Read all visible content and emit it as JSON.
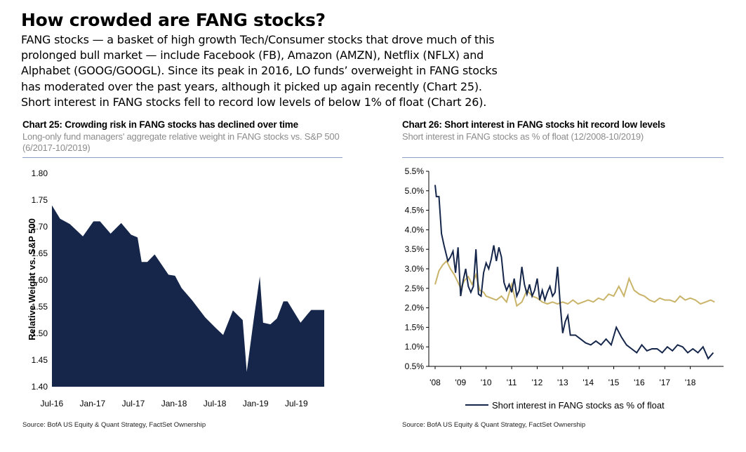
{
  "header": {
    "title": "How crowded are FANG stocks?",
    "intro": "FANG stocks — a basket of high growth Tech/Consumer stocks that drove much of this prolonged bull market — include Facebook (FB), Amazon (AMZN), Netflix (NFLX) and Alphabet (GOOG/GOOGL). Since its peak in 2016, LO funds’ overweight in FANG stocks has moderated over the past years, although it picked up again recently (Chart 25). Short interest in FANG stocks fell to record low levels of below 1% of float (Chart 26)."
  },
  "chart25": {
    "title": "Chart 25: Crowding risk in FANG stocks has declined over time",
    "subtitle": "Long-only fund managers' aggregate relative weight in FANG stocks vs. S&P 500 (6/2017-10/2019)",
    "source": "Source:  BofA US Equity & Quant Strategy, FactSet Ownership",
    "fill_color": "#15264a"
  },
  "chart26": {
    "title": "Chart 26: Short interest in FANG stocks hit record low levels",
    "subtitle": "Short interest in FANG stocks as % of float (12/2008-10/2019)",
    "source": "Source:  BofA US Equity & Quant Strategy, FactSet Ownership",
    "legend_label": "Short interest in FANG stocks as % of float",
    "series_color": "#15264a",
    "second_color": "#c9b46a"
  },
  "chart_data": [
    {
      "type": "area",
      "title": "Chart 25: Crowding risk in FANG stocks has declined over time",
      "ylabel": "Relative Weight vs. S&P 500",
      "ylim": [
        1.4,
        1.8
      ],
      "yticks": [
        "1.80",
        "1.75",
        "1.70",
        "1.65",
        "1.60",
        "1.55",
        "1.50",
        "1.45",
        "1.40"
      ],
      "xticks": [
        "Jul-16",
        "Jan-17",
        "Jul-17",
        "Jan-18",
        "Jul-18",
        "Jan-19",
        "Jul-19"
      ],
      "x": [
        2016.45,
        2016.55,
        2016.67,
        2016.83,
        2016.96,
        2017.04,
        2017.17,
        2017.3,
        2017.42,
        2017.5,
        2017.55,
        2017.62,
        2017.71,
        2017.88,
        2017.96,
        2018.04,
        2018.17,
        2018.33,
        2018.46,
        2018.55,
        2018.67,
        2018.79,
        2018.84,
        2018.92,
        2019.0,
        2019.04,
        2019.13,
        2019.21,
        2019.29,
        2019.34,
        2019.5,
        2019.58,
        2019.63,
        2019.71,
        2019.79
      ],
      "values": [
        1.74,
        1.715,
        1.705,
        1.682,
        1.71,
        1.71,
        1.687,
        1.707,
        1.685,
        1.68,
        1.634,
        1.634,
        1.648,
        1.61,
        1.608,
        1.585,
        1.562,
        1.53,
        1.51,
        1.497,
        1.543,
        1.525,
        1.428,
        1.52,
        1.607,
        1.52,
        1.517,
        1.528,
        1.56,
        1.56,
        1.52,
        1.535,
        1.544,
        1.544,
        1.544
      ],
      "grid": false
    },
    {
      "type": "line",
      "title": "Chart 26: Short interest in FANG stocks hit record low levels",
      "ylim": [
        0.5,
        5.5
      ],
      "yticks": [
        "5.5%",
        "5.0%",
        "4.5%",
        "4.0%",
        "3.5%",
        "3.0%",
        "2.5%",
        "2.0%",
        "1.5%",
        "1.0%",
        "0.5%"
      ],
      "xticks": [
        "'08",
        "'09",
        "'10",
        "'11",
        "'12",
        "'13",
        "'14",
        "'15",
        "'16",
        "'17",
        "'18"
      ],
      "legend": "bottom",
      "grid": false,
      "series": [
        {
          "name": "Short interest in FANG stocks as % of float",
          "x": [
            2008.0,
            2008.05,
            2008.15,
            2008.25,
            2008.35,
            2008.5,
            2008.6,
            2008.7,
            2008.8,
            2008.9,
            2009.0,
            2009.1,
            2009.2,
            2009.3,
            2009.4,
            2009.5,
            2009.6,
            2009.7,
            2009.8,
            2009.9,
            2010.0,
            2010.1,
            2010.2,
            2010.3,
            2010.4,
            2010.5,
            2010.6,
            2010.7,
            2010.8,
            2010.9,
            2011.0,
            2011.1,
            2011.2,
            2011.3,
            2011.4,
            2011.5,
            2011.6,
            2011.7,
            2011.8,
            2011.9,
            2012.0,
            2012.1,
            2012.2,
            2012.3,
            2012.4,
            2012.5,
            2012.6,
            2012.7,
            2012.8,
            2012.9,
            2013.0,
            2013.1,
            2013.2,
            2013.3,
            2013.5,
            2013.7,
            2013.9,
            2014.1,
            2014.3,
            2014.5,
            2014.7,
            2014.9,
            2015.1,
            2015.3,
            2015.5,
            2015.7,
            2015.9,
            2016.1,
            2016.3,
            2016.5,
            2016.7,
            2016.9,
            2017.1,
            2017.3,
            2017.5,
            2017.7,
            2017.9,
            2018.1,
            2018.3,
            2018.5,
            2018.7,
            2018.9
          ],
          "values": [
            5.15,
            4.85,
            4.85,
            3.9,
            3.6,
            3.2,
            3.3,
            3.45,
            2.9,
            3.55,
            2.3,
            2.7,
            3.0,
            2.55,
            2.4,
            2.55,
            3.5,
            2.35,
            2.3,
            2.9,
            3.15,
            3.0,
            3.25,
            3.6,
            3.2,
            3.55,
            3.3,
            2.65,
            2.45,
            2.6,
            2.4,
            2.75,
            2.3,
            2.45,
            3.05,
            2.6,
            2.35,
            2.6,
            2.3,
            2.45,
            2.75,
            2.2,
            2.45,
            2.2,
            2.4,
            2.55,
            2.3,
            2.4,
            3.05,
            2.1,
            1.35,
            1.65,
            1.8,
            1.3,
            1.3,
            1.2,
            1.1,
            1.05,
            1.15,
            1.05,
            1.2,
            1.05,
            1.5,
            1.25,
            1.05,
            0.95,
            0.85,
            1.05,
            0.9,
            0.95,
            0.95,
            0.85,
            1.0,
            0.9,
            1.05,
            1.0,
            0.85,
            0.95,
            0.85,
            1.0,
            0.7,
            0.85
          ]
        },
        {
          "name": "",
          "x": [
            2008.0,
            2008.15,
            2008.3,
            2008.45,
            2008.6,
            2008.75,
            2008.9,
            2009.0,
            2009.15,
            2009.3,
            2009.45,
            2009.6,
            2009.75,
            2009.9,
            2010.0,
            2010.2,
            2010.4,
            2010.6,
            2010.8,
            2011.0,
            2011.2,
            2011.4,
            2011.6,
            2011.8,
            2012.0,
            2012.2,
            2012.4,
            2012.6,
            2012.8,
            2013.0,
            2013.2,
            2013.4,
            2013.6,
            2013.8,
            2014.0,
            2014.2,
            2014.4,
            2014.6,
            2014.8,
            2015.0,
            2015.2,
            2015.4,
            2015.6,
            2015.8,
            2016.0,
            2016.2,
            2016.4,
            2016.6,
            2016.8,
            2017.0,
            2017.2,
            2017.4,
            2017.6,
            2017.8,
            2018.0,
            2018.2,
            2018.4,
            2018.6,
            2018.8,
            2018.95
          ],
          "values": [
            2.6,
            2.95,
            3.1,
            3.2,
            3.0,
            2.85,
            2.65,
            2.5,
            2.7,
            2.8,
            2.6,
            2.85,
            2.45,
            2.4,
            2.3,
            2.25,
            2.2,
            2.3,
            2.15,
            2.6,
            2.05,
            2.15,
            2.45,
            2.3,
            2.25,
            2.15,
            2.1,
            2.15,
            2.1,
            2.15,
            2.1,
            2.2,
            2.1,
            2.15,
            2.2,
            2.15,
            2.25,
            2.2,
            2.35,
            2.3,
            2.55,
            2.3,
            2.75,
            2.45,
            2.35,
            2.3,
            2.2,
            2.15,
            2.25,
            2.2,
            2.2,
            2.15,
            2.3,
            2.2,
            2.25,
            2.2,
            2.1,
            2.15,
            2.2,
            2.15
          ]
        }
      ]
    }
  ]
}
